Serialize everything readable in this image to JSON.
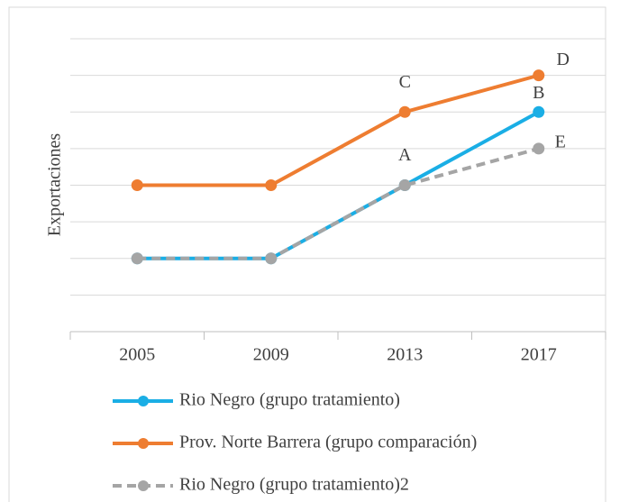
{
  "chart_data": {
    "type": "line",
    "y_label": "Exportaciones",
    "categories": [
      "2005",
      "2009",
      "2013",
      "2017"
    ],
    "ylim": [
      0,
      8
    ],
    "yticks": [
      1,
      2,
      3,
      4,
      5,
      6,
      7,
      8
    ],
    "grid": true,
    "series": [
      {
        "name": "Rio Negro (grupo tratamiento)",
        "color": "#1aaee5",
        "dashed": false,
        "values": [
          2,
          2,
          4,
          6
        ],
        "point_labels": [
          null,
          null,
          "A",
          "B"
        ]
      },
      {
        "name": "Prov. Norte Barrera (grupo comparación)",
        "color": "#ee7d31",
        "dashed": false,
        "values": [
          4,
          4,
          6,
          7
        ],
        "point_labels": [
          null,
          null,
          "C",
          "D"
        ]
      },
      {
        "name": "Rio Negro (grupo tratamiento)2",
        "color": "#a5a5a5",
        "dashed": true,
        "values": [
          2,
          2,
          4,
          5
        ],
        "point_labels": [
          null,
          null,
          null,
          "E"
        ]
      }
    ]
  }
}
